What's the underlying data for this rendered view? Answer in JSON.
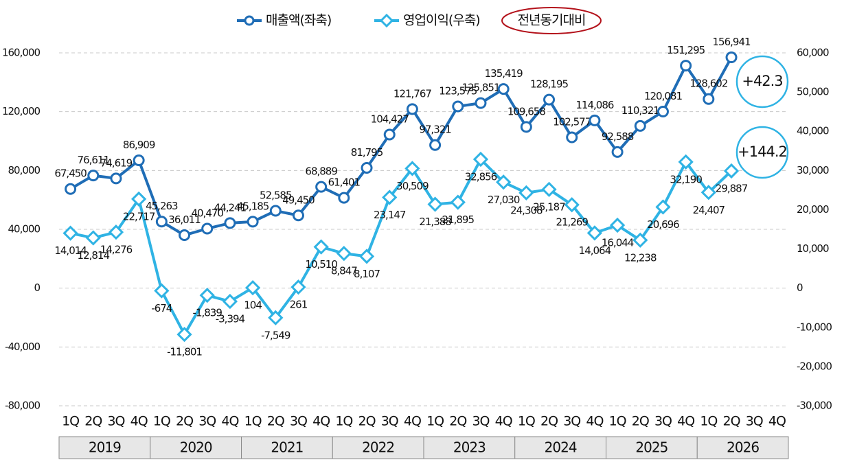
{
  "chart_data": {
    "type": "line",
    "categories": [
      "1Q",
      "2Q",
      "3Q",
      "4Q",
      "1Q",
      "2Q",
      "3Q",
      "4Q",
      "1Q",
      "2Q",
      "3Q",
      "4Q",
      "1Q",
      "2Q",
      "3Q",
      "4Q",
      "1Q",
      "2Q",
      "3Q",
      "4Q",
      "1Q",
      "2Q",
      "3Q",
      "4Q",
      "1Q",
      "2Q",
      "3Q",
      "4Q",
      "1Q",
      "2Q",
      "3Q",
      "4Q"
    ],
    "groups": [
      "2019",
      "2020",
      "2021",
      "2022",
      "2023",
      "2024",
      "2025",
      "2026"
    ],
    "series": [
      {
        "name": "매출액(좌축)",
        "color": "#1f6db6",
        "axis": "y",
        "marker": "circle",
        "values": [
          67450,
          76611,
          74619,
          86909,
          45263,
          36011,
          40470,
          44241,
          45185,
          52585,
          49450,
          68889,
          61401,
          81795,
          104427,
          121767,
          97321,
          123575,
          125851,
          135419,
          109658,
          128195,
          102577,
          114086,
          92588,
          110321,
          120081,
          151295,
          128602,
          156941,
          null,
          null
        ],
        "value_labels": [
          "67,450",
          "76,611",
          "74,619",
          "86,909",
          "45,263",
          "36,011",
          "40,470",
          "44,241",
          "45,185",
          "52,585",
          "49,450",
          "68,889",
          "61,401",
          "81,795",
          "104,427",
          "121,767",
          "97,321",
          "123,575",
          "125,851",
          "135,419",
          "109,658",
          "128,195",
          "102,577",
          "114,086",
          "92,588",
          "110,321",
          "120,081",
          "151,295",
          "128,602",
          "156,941",
          null,
          null
        ]
      },
      {
        "name": "영업이익(우축)",
        "color": "#2fb3e4",
        "axis": "y2",
        "marker": "diamond",
        "values": [
          14014,
          12814,
          14276,
          22717,
          -674,
          -11801,
          -1839,
          -3394,
          104,
          -7549,
          261,
          10510,
          8847,
          8107,
          23147,
          30509,
          21388,
          21895,
          32856,
          27030,
          24308,
          25187,
          21269,
          14064,
          16044,
          12238,
          20696,
          32190,
          24407,
          29887,
          null,
          null
        ],
        "value_labels": [
          "14,014",
          "12,814",
          "14,276",
          "22,717",
          "-674",
          "-11,801",
          "-1,839",
          "-3,394",
          "104",
          "-7,549",
          "261",
          "10,510",
          "8,847",
          "8,107",
          "23,147",
          "30,509",
          "21,388",
          "21,895",
          "32,856",
          "27,030",
          "24,308",
          "25,187",
          "21,269",
          "14,064",
          "16,044",
          "12,238",
          "20,696",
          "32,190",
          "24,407",
          "29,887",
          null,
          null
        ]
      }
    ],
    "ylim": [
      -80000,
      160000
    ],
    "yticks": [
      {
        "value": -80000,
        "label": "-80,000"
      },
      {
        "value": -40000,
        "label": "-40,000"
      },
      0,
      {
        "value": 40000,
        "label": "40,000"
      },
      {
        "value": 80000,
        "label": "80,000"
      },
      {
        "value": 120000,
        "label": "120,000"
      },
      {
        "value": 160000,
        "label": "160,000"
      }
    ],
    "y2lim": [
      -30000,
      60000
    ],
    "y2ticks": [
      {
        "value": -30000,
        "label": "-30,000"
      },
      {
        "value": -20000,
        "label": "-20,000"
      },
      {
        "value": -10000,
        "label": "-10,000"
      },
      0,
      {
        "value": 10000,
        "label": "10,000"
      },
      {
        "value": 20000,
        "label": "20,000"
      },
      {
        "value": 30000,
        "label": "30,000"
      },
      {
        "value": 40000,
        "label": "40,000"
      },
      {
        "value": 50000,
        "label": "50,000"
      },
      {
        "value": 60000,
        "label": "60,000"
      }
    ],
    "grid": true,
    "legend_note": "전년동기대비",
    "annotations": [
      "+42.3",
      "+144.2"
    ]
  }
}
